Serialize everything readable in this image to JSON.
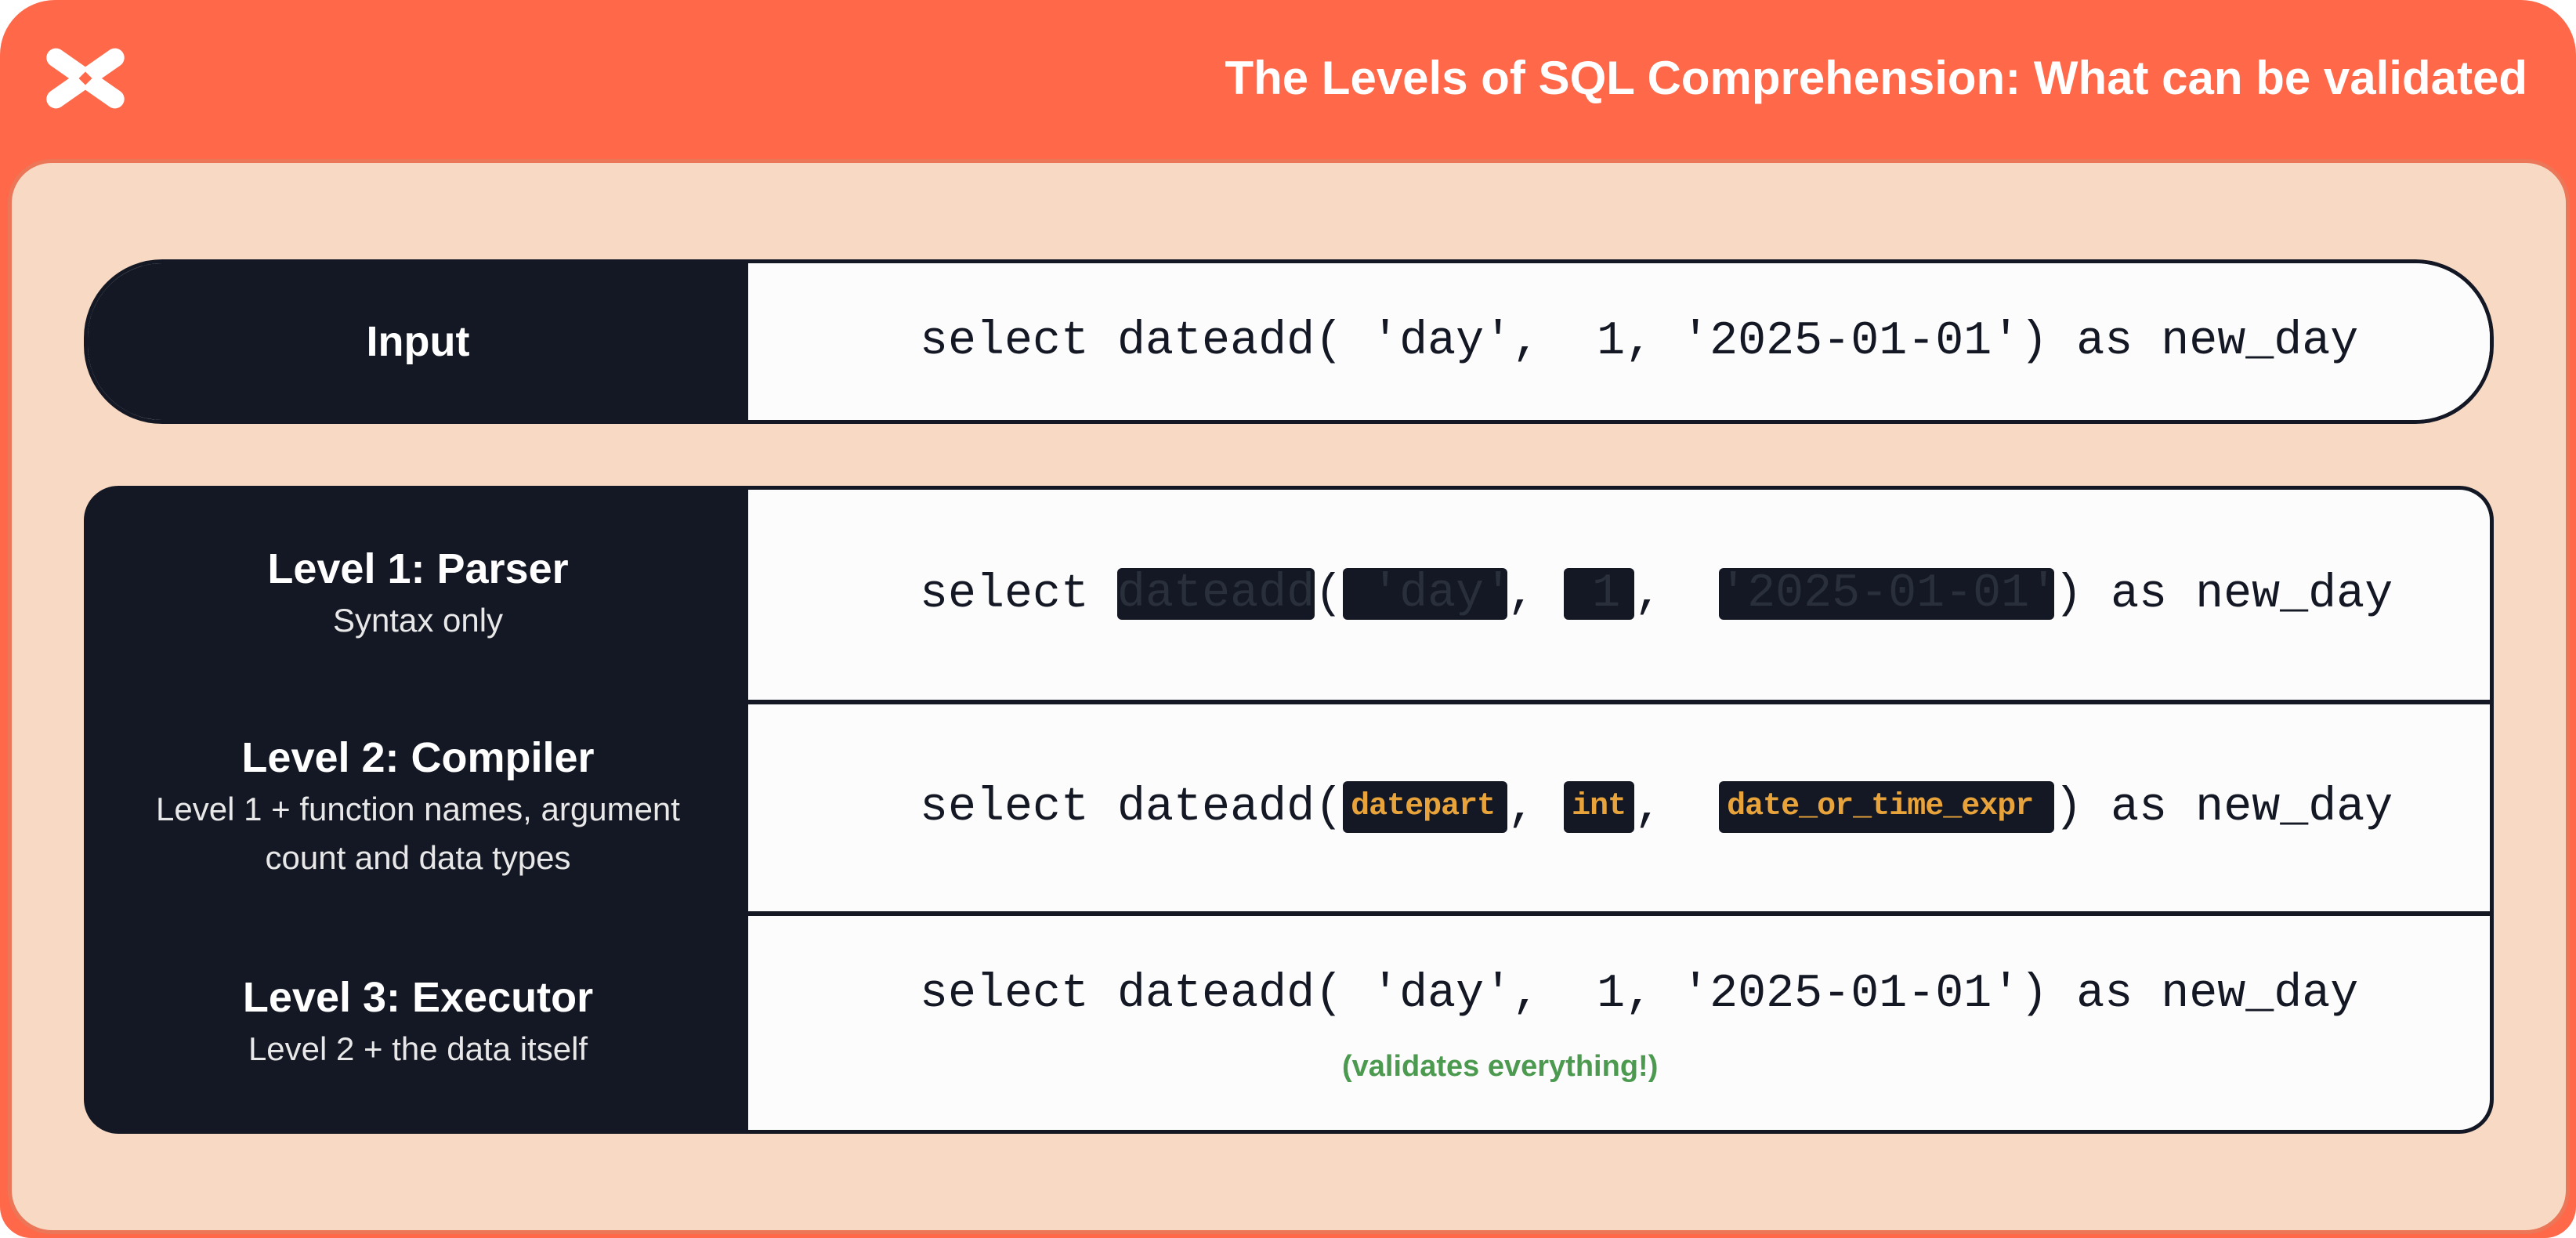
{
  "header": {
    "title": "The Levels of SQL Comprehension: What can be validated",
    "logo": "dbt-logo",
    "color": "#FF6849"
  },
  "input": {
    "label": "Input",
    "code": "select dateadd( 'day',  1, '2025-01-01') as new_day"
  },
  "levels": [
    {
      "title": "Level 1: Parser",
      "subtitle": "Syntax only",
      "code": {
        "prefix": "select ",
        "func": "dateadd",
        "open": "(",
        "arg1": " 'day'",
        "sep1": ",",
        "gap1": " ",
        "arg2": " 1",
        "sep2": ",",
        "gap2": " ",
        "arg3": "'2025-01-01'",
        "suffix": ") as new_day"
      }
    },
    {
      "title": "Level 2: Compiler",
      "subtitle_lines": [
        "Level 1 + function names, argument",
        "count and data types"
      ],
      "code": {
        "prefix": "select dateadd(",
        "arg1": "datepart",
        "sep1": ",",
        "gap1": " ",
        "arg2": "int",
        "sep2": ",",
        "gap2": " ",
        "arg3": "date_or_time_expr",
        "suffix": ") as new_day"
      }
    },
    {
      "title": "Level 3: Executor",
      "subtitle": "Level 2 + the data itself",
      "code": "select dateadd( 'day',  1, '2025-01-01') as new_day",
      "note": "(validates everything!)"
    }
  ],
  "colors": {
    "dark": "#141824",
    "type_highlight": "#E8A33A",
    "note": "#4C9A4F",
    "panel": "#F8DAC4"
  }
}
